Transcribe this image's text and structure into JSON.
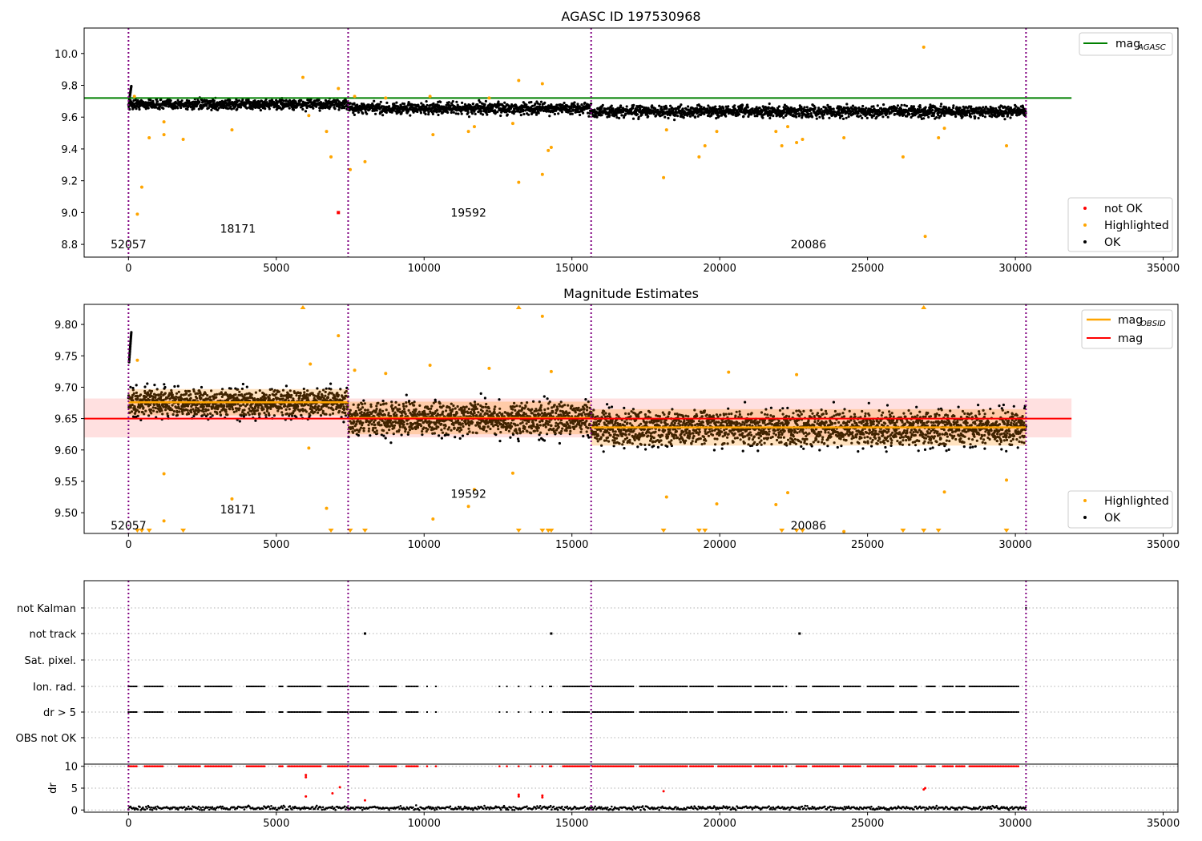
{
  "chart_data": [
    {
      "type": "scatter",
      "title": "AGASC ID 197530968",
      "xlim": [
        -1500,
        35500
      ],
      "ylim": [
        8.72,
        10.16
      ],
      "xticks": [
        0,
        5000,
        10000,
        15000,
        20000,
        25000,
        30000,
        35000
      ],
      "yticks": [
        8.8,
        9.0,
        9.2,
        9.4,
        9.6,
        9.8,
        10.0
      ],
      "ytick_labels": [
        "8.8",
        "9.0",
        "9.2",
        "9.4",
        "9.6",
        "9.8",
        "10.0"
      ],
      "obs_boundaries": [
        0,
        7430,
        15650,
        30360
      ],
      "obs_labels": [
        {
          "text": "52057",
          "x": 0,
          "y": 8.8
        },
        {
          "text": "18171",
          "x": 3700,
          "y": 8.9
        },
        {
          "text": "19592",
          "x": 11500,
          "y": 9.0
        },
        {
          "text": "20086",
          "x": 23000,
          "y": 8.8
        }
      ],
      "reference_lines": [
        {
          "name": "mag_AGASC",
          "value": 9.72,
          "x_range": [
            -1500,
            31900
          ],
          "color": "#008000"
        }
      ],
      "series": [
        {
          "name": "OK",
          "color": "#000000",
          "segments": [
            {
              "x_range": [
                0,
                7430
              ],
              "mean": 9.68,
              "spread": 0.03
            },
            {
              "x_range": [
                7430,
                15650
              ],
              "mean": 9.655,
              "spread": 0.035
            },
            {
              "x_range": [
                15650,
                30360
              ],
              "mean": 9.635,
              "spread": 0.035
            }
          ]
        },
        {
          "name": "Highlighted",
          "color": "#ffa500",
          "points": [
            [
              200,
              9.73
            ],
            [
              300,
              8.99
            ],
            [
              450,
              9.16
            ],
            [
              700,
              9.47
            ],
            [
              1200,
              9.49
            ],
            [
              1200,
              9.57
            ],
            [
              1850,
              9.46
            ],
            [
              3500,
              9.52
            ],
            [
              5900,
              9.85
            ],
            [
              6100,
              9.61
            ],
            [
              6700,
              9.51
            ],
            [
              6850,
              9.35
            ],
            [
              7100,
              9.78
            ],
            [
              7500,
              9.27
            ],
            [
              7650,
              9.73
            ],
            [
              8000,
              9.32
            ],
            [
              8700,
              9.72
            ],
            [
              10200,
              9.73
            ],
            [
              10300,
              9.49
            ],
            [
              11500,
              9.51
            ],
            [
              11700,
              9.54
            ],
            [
              12200,
              9.72
            ],
            [
              13000,
              9.56
            ],
            [
              13200,
              9.83
            ],
            [
              13200,
              9.19
            ],
            [
              14000,
              9.81
            ],
            [
              14000,
              9.24
            ],
            [
              14200,
              9.39
            ],
            [
              14300,
              9.41
            ],
            [
              18100,
              9.22
            ],
            [
              18200,
              9.52
            ],
            [
              19300,
              9.35
            ],
            [
              19500,
              9.42
            ],
            [
              19900,
              9.51
            ],
            [
              21900,
              9.51
            ],
            [
              22100,
              9.42
            ],
            [
              22300,
              9.54
            ],
            [
              22600,
              9.44
            ],
            [
              22800,
              9.46
            ],
            [
              24200,
              9.47
            ],
            [
              26200,
              9.35
            ],
            [
              26900,
              10.04
            ],
            [
              26950,
              8.85
            ],
            [
              27400,
              9.47
            ],
            [
              27600,
              9.53
            ],
            [
              29700,
              9.42
            ]
          ]
        },
        {
          "name": "not OK",
          "color": "#ff0000",
          "points": [
            [
              7100,
              9.0
            ]
          ]
        }
      ],
      "legends": [
        [
          "mag_AGASC"
        ],
        [
          "not OK",
          "Highlighted",
          "OK"
        ]
      ]
    },
    {
      "type": "scatter",
      "title": "Magnitude Estimates",
      "xlim": [
        -1500,
        35500
      ],
      "ylim": [
        9.467,
        9.832
      ],
      "xticks": [
        0,
        5000,
        10000,
        15000,
        20000,
        25000,
        30000,
        35000
      ],
      "yticks": [
        9.5,
        9.55,
        9.6,
        9.65,
        9.7,
        9.75,
        9.8
      ],
      "ytick_labels": [
        "9.50",
        "9.55",
        "9.60",
        "9.65",
        "9.70",
        "9.75",
        "9.80"
      ],
      "obs_boundaries": [
        0,
        7430,
        15650,
        30360
      ],
      "obs_labels": [
        {
          "text": "52057",
          "x": 0,
          "y": 9.48
        },
        {
          "text": "18171",
          "x": 3700,
          "y": 9.505
        },
        {
          "text": "19592",
          "x": 11500,
          "y": 9.53
        },
        {
          "text": "20086",
          "x": 23000,
          "y": 9.48
        }
      ],
      "reference_lines": [
        {
          "name": "mag",
          "value": 9.65,
          "band": [
            9.62,
            9.682
          ],
          "x_range": [
            -1500,
            31900
          ],
          "color": "#ff0000"
        }
      ],
      "obsid_means": [
        {
          "x_range": [
            0,
            7430
          ],
          "value": 9.676,
          "band": [
            9.655,
            9.697
          ]
        },
        {
          "x_range": [
            7430,
            15650
          ],
          "value": 9.651,
          "band": [
            9.625,
            9.677
          ]
        },
        {
          "x_range": [
            15650,
            30360
          ],
          "value": 9.636,
          "band": [
            9.607,
            9.665
          ]
        }
      ],
      "series": [
        {
          "name": "OK",
          "color": "#000000",
          "segments": [
            {
              "x_range": [
                0,
                7430
              ],
              "mean": 9.675,
              "spread": 0.022
            },
            {
              "x_range": [
                7430,
                15650
              ],
              "mean": 9.65,
              "spread": 0.026
            },
            {
              "x_range": [
                15650,
                30360
              ],
              "mean": 9.635,
              "spread": 0.028
            }
          ]
        },
        {
          "name": "Highlighted",
          "color": "#ffa500",
          "points": [
            [
              300,
              9.743
            ],
            [
              1200,
              9.562
            ],
            [
              1200,
              9.487
            ],
            [
              3500,
              9.522
            ],
            [
              6100,
              9.603
            ],
            [
              6150,
              9.737
            ],
            [
              6700,
              9.507
            ],
            [
              7100,
              9.782
            ],
            [
              7650,
              9.727
            ],
            [
              8700,
              9.722
            ],
            [
              10200,
              9.735
            ],
            [
              10300,
              9.49
            ],
            [
              11500,
              9.51
            ],
            [
              11700,
              9.537
            ],
            [
              12200,
              9.73
            ],
            [
              13000,
              9.563
            ],
            [
              14000,
              9.813
            ],
            [
              14300,
              9.725
            ],
            [
              18200,
              9.525
            ],
            [
              19900,
              9.514
            ],
            [
              20300,
              9.724
            ],
            [
              21900,
              9.513
            ],
            [
              22300,
              9.532
            ],
            [
              22600,
              9.72
            ],
            [
              27600,
              9.533
            ],
            [
              29700,
              9.552
            ],
            [
              24200,
              9.47
            ]
          ]
        }
      ],
      "off_scale_low": [
        300,
        450,
        700,
        1850,
        6850,
        7500,
        8000,
        13200,
        14000,
        14200,
        14300,
        18100,
        19300,
        19500,
        22100,
        22600,
        22800,
        26200,
        26900,
        27400,
        29700
      ],
      "off_scale_high": [
        5900,
        13200,
        26900
      ],
      "legends": [
        [
          "mag_OBSID",
          "mag"
        ],
        [
          "Highlighted",
          "OK"
        ]
      ]
    },
    {
      "type": "scatter",
      "xlim": [
        -1500,
        35500
      ],
      "xticks": [
        0,
        5000,
        10000,
        15000,
        20000,
        25000,
        30000,
        35000
      ],
      "obs_boundaries": [
        0,
        7430,
        15650,
        30360
      ],
      "categories": [
        "not Kalman",
        "not track",
        "Sat. pixel.",
        "Ion. rad.",
        "dr > 5",
        "OBS not OK"
      ],
      "flag_points": {
        "not track": [
          8000,
          14300,
          22700
        ],
        "Ion. rad.": "clustered",
        "dr > 5": "clustered"
      },
      "flag_clusters": [
        [
          0,
          300
        ],
        [
          550,
          1200
        ],
        [
          1700,
          2450
        ],
        [
          2600,
          3500
        ],
        [
          4000,
          4650
        ],
        [
          5100,
          5250
        ],
        [
          5400,
          6500
        ],
        [
          6750,
          7450
        ],
        [
          7500,
          8150
        ],
        [
          8500,
          9100
        ],
        [
          9400,
          9800
        ],
        [
          10100,
          10150
        ],
        [
          10400,
          10450
        ],
        [
          12550,
          12600
        ],
        [
          12800,
          12850
        ],
        [
          13200,
          13250
        ],
        [
          13600,
          13650
        ],
        [
          14000,
          14050
        ],
        [
          14250,
          14350
        ],
        [
          14700,
          15600
        ],
        [
          15700,
          17100
        ],
        [
          17300,
          18900
        ],
        [
          19000,
          19800
        ],
        [
          19950,
          21050
        ],
        [
          21200,
          21700
        ],
        [
          21800,
          22150
        ],
        [
          22250,
          22300
        ],
        [
          22600,
          22950
        ],
        [
          23150,
          24050
        ],
        [
          24200,
          24800
        ],
        [
          25000,
          25900
        ],
        [
          26100,
          26700
        ],
        [
          27000,
          27300
        ],
        [
          27550,
          27900
        ],
        [
          28000,
          28300
        ],
        [
          28450,
          30100
        ]
      ],
      "subplot": {
        "ylabel": "dr",
        "ylim": [
          -0.5,
          10.5
        ],
        "yticks": [
          0,
          5,
          10
        ],
        "series": [
          {
            "name": "OK",
            "color": "#000000",
            "mean": 0.5,
            "spread": 0.3
          },
          {
            "name": "not OK",
            "color": "#ff0000",
            "points": [
              [
                6000,
                8.0
              ],
              [
                6000,
                7.5
              ],
              [
                6000,
                3.1
              ],
              [
                6900,
                3.8
              ],
              [
                7150,
                5.2
              ],
              [
                8000,
                2.2
              ],
              [
                13200,
                3.1
              ],
              [
                13200,
                3.5
              ],
              [
                14000,
                2.9
              ],
              [
                14000,
                3.3
              ],
              [
                18100,
                4.3
              ],
              [
                26900,
                4.7
              ],
              [
                26950,
                5.0
              ]
            ]
          }
        ]
      }
    }
  ]
}
